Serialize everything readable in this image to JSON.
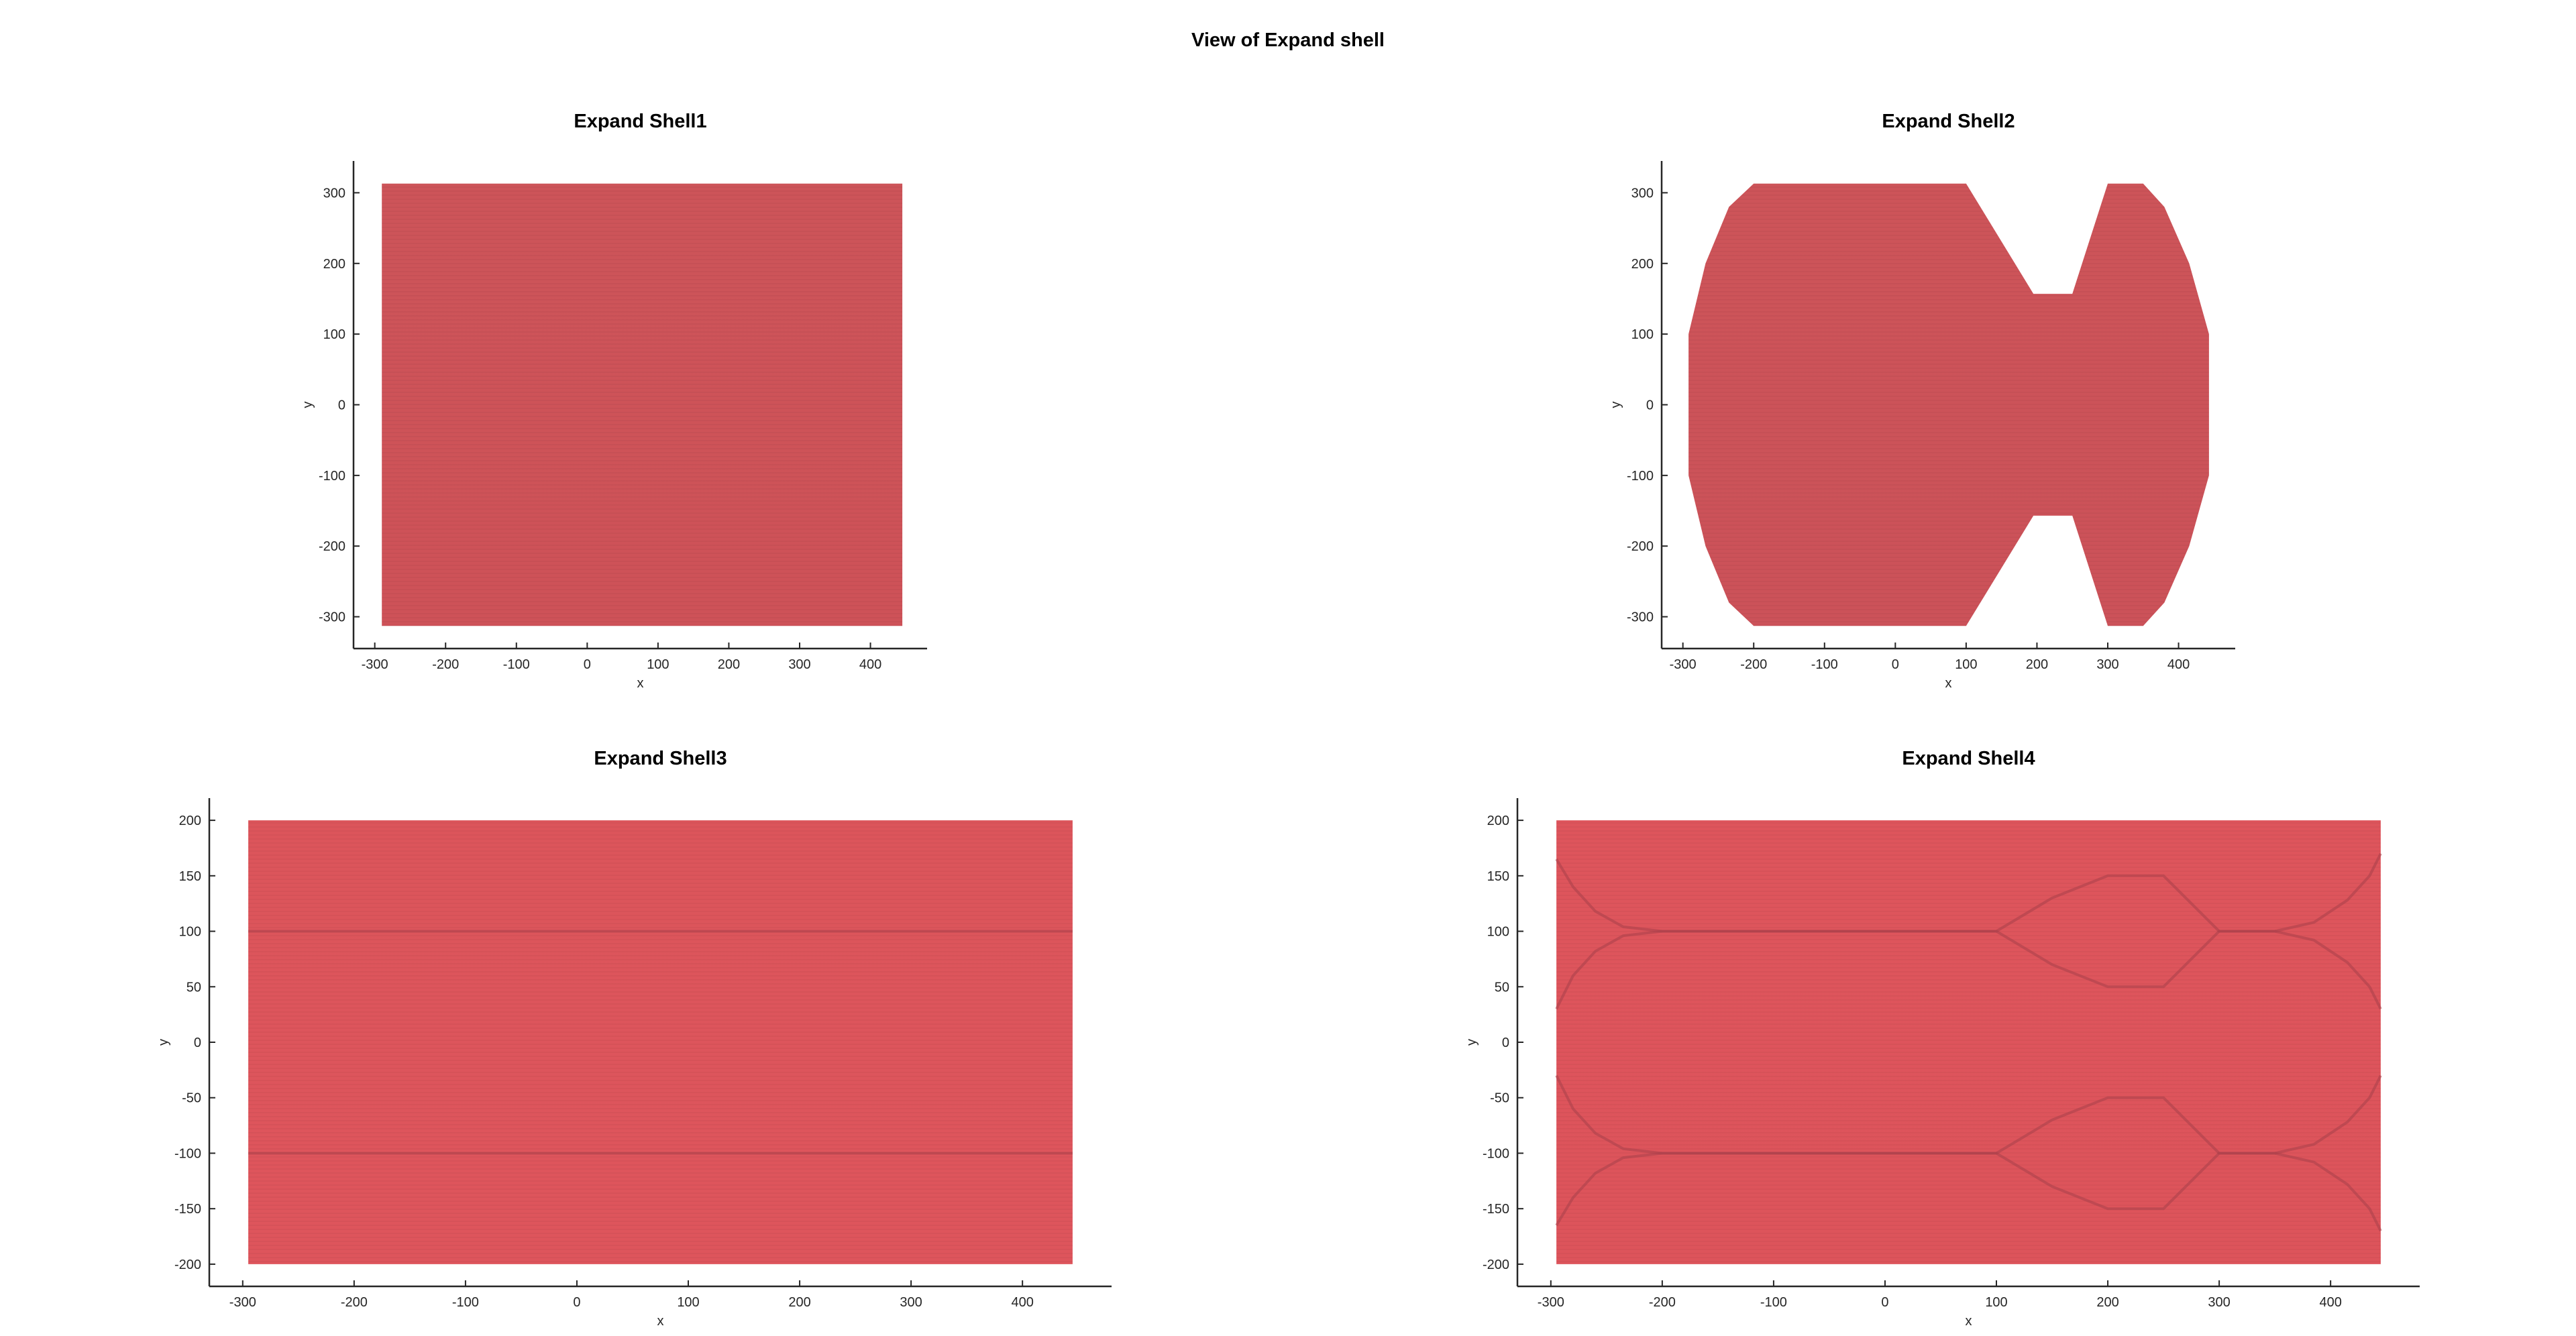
{
  "figure_title": "View of Expand shell",
  "colors": {
    "shell_fill_dark": "#cd5459",
    "shell_fill_light": "#de555c",
    "contour_line": "#a8404a",
    "axis": "#262626"
  },
  "chart_data": [
    {
      "type": "area",
      "title": "Expand Shell1",
      "xlabel": "x",
      "ylabel": "y",
      "xlim": [
        -330,
        480
      ],
      "ylim": [
        -345,
        345
      ],
      "xticks": [
        -300,
        -200,
        -100,
        0,
        100,
        200,
        300,
        400
      ],
      "yticks": [
        -300,
        -200,
        -100,
        0,
        100,
        200,
        300
      ],
      "grid": false,
      "outline": [
        [
          -290,
          313
        ],
        [
          445,
          313
        ],
        [
          445,
          -313
        ],
        [
          -290,
          -313
        ]
      ],
      "contour_lines": []
    },
    {
      "type": "area",
      "title": "Expand Shell2",
      "xlabel": "x",
      "ylabel": "y",
      "xlim": [
        -330,
        480
      ],
      "ylim": [
        -345,
        345
      ],
      "xticks": [
        -300,
        -200,
        -100,
        0,
        100,
        200,
        300,
        400
      ],
      "yticks": [
        -300,
        -200,
        -100,
        0,
        100,
        200,
        300
      ],
      "grid": false,
      "outline": [
        [
          -200,
          313
        ],
        [
          100,
          313
        ],
        [
          195,
          157
        ],
        [
          250,
          157
        ],
        [
          300,
          313
        ],
        [
          350,
          313
        ],
        [
          380,
          280
        ],
        [
          415,
          200
        ],
        [
          443,
          100
        ],
        [
          443,
          -100
        ],
        [
          415,
          -200
        ],
        [
          380,
          -280
        ],
        [
          350,
          -313
        ],
        [
          300,
          -313
        ],
        [
          250,
          -157
        ],
        [
          195,
          -157
        ],
        [
          100,
          -313
        ],
        [
          -200,
          -313
        ],
        [
          -235,
          -280
        ],
        [
          -268,
          -200
        ],
        [
          -292,
          -100
        ],
        [
          -292,
          100
        ],
        [
          -268,
          200
        ],
        [
          -235,
          280
        ]
      ],
      "contour_lines": []
    },
    {
      "type": "area",
      "title": "Expand Shell3",
      "xlabel": "x",
      "ylabel": "y",
      "xlim": [
        -330,
        480
      ],
      "ylim": [
        -220,
        220
      ],
      "xticks": [
        -300,
        -200,
        -100,
        0,
        100,
        200,
        300,
        400
      ],
      "yticks": [
        -200,
        -150,
        -100,
        -50,
        0,
        50,
        100,
        150,
        200
      ],
      "grid": false,
      "outline": [
        [
          -295,
          200
        ],
        [
          445,
          200
        ],
        [
          445,
          -200
        ],
        [
          -295,
          -200
        ]
      ],
      "contour_lines": [
        [
          [
            -295,
            100
          ],
          [
            445,
            100
          ]
        ],
        [
          [
            -295,
            -100
          ],
          [
            445,
            -100
          ]
        ]
      ]
    },
    {
      "type": "area",
      "title": "Expand Shell4",
      "xlabel": "x",
      "ylabel": "y",
      "xlim": [
        -330,
        480
      ],
      "ylim": [
        -220,
        220
      ],
      "xticks": [
        -300,
        -200,
        -100,
        0,
        100,
        200,
        300,
        400
      ],
      "yticks": [
        -200,
        -150,
        -100,
        -50,
        0,
        50,
        100,
        150,
        200
      ],
      "grid": false,
      "outline": [
        [
          -295,
          200
        ],
        [
          445,
          200
        ],
        [
          445,
          -200
        ],
        [
          -295,
          -200
        ]
      ],
      "contour_lines": [
        [
          [
            -295,
            165
          ],
          [
            -280,
            140
          ],
          [
            -260,
            118
          ],
          [
            -235,
            104
          ],
          [
            -200,
            100
          ],
          [
            100,
            100
          ],
          [
            150,
            70
          ],
          [
            200,
            50
          ],
          [
            250,
            50
          ],
          [
            300,
            100
          ],
          [
            350,
            100
          ],
          [
            385,
            108
          ],
          [
            415,
            128
          ],
          [
            435,
            150
          ],
          [
            445,
            170
          ]
        ],
        [
          [
            -295,
            30
          ],
          [
            -280,
            60
          ],
          [
            -260,
            82
          ],
          [
            -235,
            96
          ],
          [
            -200,
            100
          ],
          [
            100,
            100
          ],
          [
            150,
            130
          ],
          [
            200,
            150
          ],
          [
            250,
            150
          ],
          [
            300,
            100
          ],
          [
            350,
            100
          ],
          [
            385,
            92
          ],
          [
            415,
            72
          ],
          [
            435,
            50
          ],
          [
            445,
            30
          ]
        ],
        [
          [
            -295,
            -30
          ],
          [
            -280,
            -60
          ],
          [
            -260,
            -82
          ],
          [
            -235,
            -96
          ],
          [
            -200,
            -100
          ],
          [
            100,
            -100
          ],
          [
            150,
            -130
          ],
          [
            200,
            -150
          ],
          [
            250,
            -150
          ],
          [
            300,
            -100
          ],
          [
            350,
            -100
          ],
          [
            385,
            -92
          ],
          [
            415,
            -72
          ],
          [
            435,
            -50
          ],
          [
            445,
            -30
          ]
        ],
        [
          [
            -295,
            -165
          ],
          [
            -280,
            -140
          ],
          [
            -260,
            -118
          ],
          [
            -235,
            -104
          ],
          [
            -200,
            -100
          ],
          [
            100,
            -100
          ],
          [
            150,
            -70
          ],
          [
            200,
            -50
          ],
          [
            250,
            -50
          ],
          [
            300,
            -100
          ],
          [
            350,
            -100
          ],
          [
            385,
            -108
          ],
          [
            415,
            -128
          ],
          [
            435,
            -150
          ],
          [
            445,
            -170
          ]
        ]
      ]
    }
  ]
}
